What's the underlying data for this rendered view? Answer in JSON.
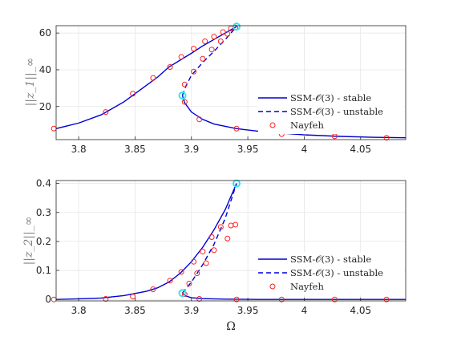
{
  "chart_data": [
    {
      "type": "line",
      "ylabel": "||z_1||_∞",
      "xlim": [
        3.78,
        4.09
      ],
      "ylim": [
        2,
        64
      ],
      "xticks": [
        "3.8",
        "3.85",
        "3.9",
        "3.95",
        "4",
        "4.05"
      ],
      "yticks": [
        "20",
        "40",
        "60"
      ],
      "ytick_values": [
        20,
        40,
        60
      ],
      "grid": true,
      "legend_position": "center-right",
      "series": [
        {
          "name": "SSM-𝒪(3) - stable",
          "style": "solid",
          "color": "#0000d6",
          "segments": [
            [
              [
                3.78,
                8.0
              ],
              [
                3.8,
                11.0
              ],
              [
                3.82,
                15.5
              ],
              [
                3.84,
                22.5
              ],
              [
                3.86,
                31.5
              ],
              [
                3.87,
                36.0
              ],
              [
                3.88,
                41.5
              ],
              [
                3.9,
                49.0
              ],
              [
                3.91,
                53.0
              ],
              [
                3.92,
                56.5
              ],
              [
                3.93,
                60.0
              ],
              [
                3.94,
                63.5
              ]
            ],
            [
              [
                3.892,
                26.0
              ],
              [
                3.894,
                22.0
              ],
              [
                3.9,
                17.0
              ],
              [
                3.91,
                13.0
              ],
              [
                3.92,
                10.5
              ],
              [
                3.94,
                8.0
              ],
              [
                3.96,
                6.5
              ],
              [
                3.98,
                5.5
              ],
              [
                4.0,
                4.6
              ],
              [
                4.03,
                3.8
              ],
              [
                4.06,
                3.3
              ],
              [
                4.09,
                3.0
              ]
            ]
          ]
        },
        {
          "name": "SSM-𝒪(3) - unstable",
          "style": "dashed",
          "color": "#0000d6",
          "segments": [
            [
              [
                3.892,
                26.0
              ],
              [
                3.895,
                31.0
              ],
              [
                3.9,
                37.0
              ],
              [
                3.91,
                44.0
              ],
              [
                3.92,
                50.0
              ],
              [
                3.93,
                56.5
              ],
              [
                3.94,
                63.5
              ]
            ]
          ]
        },
        {
          "name": "Nayfeh",
          "style": "markers",
          "color": "#ff2020",
          "points": [
            [
              3.778,
              8.0
            ],
            [
              3.824,
              17.0
            ],
            [
              3.848,
              27.0
            ],
            [
              3.866,
              35.5
            ],
            [
              3.881,
              41.5
            ],
            [
              3.891,
              47.0
            ],
            [
              3.902,
              51.5
            ],
            [
              3.912,
              55.5
            ],
            [
              3.92,
              58.0
            ],
            [
              3.928,
              60.5
            ],
            [
              3.935,
              62.5
            ],
            [
              3.939,
              63.0
            ],
            [
              3.894,
              32.0
            ],
            [
              3.902,
              39.0
            ],
            [
              3.91,
              46.0
            ],
            [
              3.918,
              51.0
            ],
            [
              3.926,
              55.5
            ],
            [
              3.932,
              59.5
            ],
            [
              3.894,
              22.5
            ],
            [
              3.907,
              13.0
            ],
            [
              3.94,
              8.0
            ],
            [
              3.98,
              5.0
            ],
            [
              4.027,
              3.8
            ],
            [
              4.073,
              3.0
            ]
          ]
        }
      ],
      "special_points": [
        [
          3.94,
          63.5
        ],
        [
          3.892,
          26.0
        ]
      ],
      "special_color": "#2ee6ee"
    },
    {
      "type": "line",
      "ylabel": "||z_2||_∞",
      "xlabel": "Ω",
      "xlim": [
        3.78,
        4.09
      ],
      "ylim": [
        -0.005,
        0.41
      ],
      "xticks": [
        "3.8",
        "3.85",
        "3.9",
        "3.95",
        "4",
        "4.05"
      ],
      "yticks": [
        "0",
        "0.1",
        "0.2",
        "0.3",
        "0.4"
      ],
      "ytick_values": [
        0,
        0.1,
        0.2,
        0.3,
        0.4
      ],
      "grid": true,
      "legend_position": "bottom-right",
      "series": [
        {
          "name": "SSM-𝒪(3) - stable",
          "style": "solid",
          "color": "#0000d6",
          "segments": [
            [
              [
                3.78,
                0.0
              ],
              [
                3.8,
                0.002
              ],
              [
                3.82,
                0.005
              ],
              [
                3.84,
                0.013
              ],
              [
                3.86,
                0.028
              ],
              [
                3.87,
                0.04
              ],
              [
                3.88,
                0.06
              ],
              [
                3.89,
                0.09
              ],
              [
                3.9,
                0.13
              ],
              [
                3.91,
                0.18
              ],
              [
                3.92,
                0.24
              ],
              [
                3.93,
                0.31
              ],
              [
                3.94,
                0.4
              ]
            ],
            [
              [
                3.892,
                0.022
              ],
              [
                3.895,
                0.012
              ],
              [
                3.9,
                0.006
              ],
              [
                3.91,
                0.003
              ],
              [
                3.93,
                0.001
              ],
              [
                3.96,
                0.0
              ],
              [
                4.09,
                0.0
              ]
            ]
          ]
        },
        {
          "name": "SSM-𝒪(3) - unstable",
          "style": "dashed",
          "color": "#0000d6",
          "segments": [
            [
              [
                3.892,
                0.022
              ],
              [
                3.9,
                0.06
              ],
              [
                3.91,
                0.12
              ],
              [
                3.92,
                0.19
              ],
              [
                3.93,
                0.28
              ],
              [
                3.94,
                0.4
              ]
            ]
          ]
        },
        {
          "name": "Nayfeh",
          "style": "markers",
          "color": "#ff2020",
          "points": [
            [
              3.778,
              0.0
            ],
            [
              3.824,
              0.002
            ],
            [
              3.848,
              0.01
            ],
            [
              3.866,
              0.035
            ],
            [
              3.881,
              0.065
            ],
            [
              3.891,
              0.095
            ],
            [
              3.894,
              0.018
            ],
            [
              3.898,
              0.055
            ],
            [
              3.902,
              0.13
            ],
            [
              3.905,
              0.09
            ],
            [
              3.91,
              0.165
            ],
            [
              3.913,
              0.125
            ],
            [
              3.918,
              0.215
            ],
            [
              3.92,
              0.17
            ],
            [
              3.926,
              0.25
            ],
            [
              3.932,
              0.21
            ],
            [
              3.935,
              0.255
            ],
            [
              3.939,
              0.258
            ],
            [
              3.907,
              0.002
            ],
            [
              3.94,
              0.0
            ],
            [
              3.98,
              0.0
            ],
            [
              4.027,
              0.0
            ],
            [
              4.073,
              0.0
            ]
          ]
        }
      ],
      "special_points": [
        [
          3.94,
          0.4
        ],
        [
          3.892,
          0.022
        ]
      ],
      "special_color": "#2ee6ee"
    }
  ]
}
